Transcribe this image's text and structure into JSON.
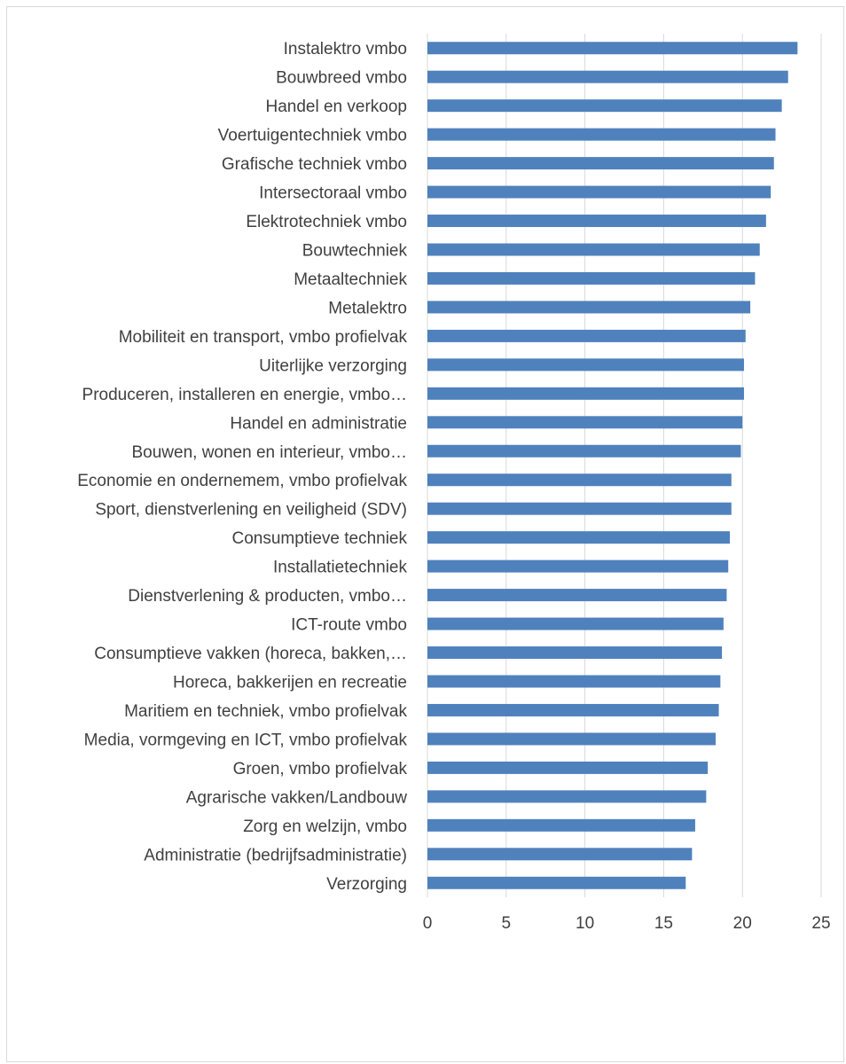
{
  "chart_data": {
    "type": "bar",
    "orientation": "horizontal",
    "title": "",
    "xlabel": "",
    "ylabel": "",
    "xlim": [
      0,
      25
    ],
    "ticks": [
      0,
      5,
      10,
      15,
      20,
      25
    ],
    "tick_labels": [
      "0",
      "5",
      "10",
      "15",
      "20",
      "25"
    ],
    "grid": "vertical gridlines",
    "legend": "none",
    "bar_color": "#4f81bd",
    "categories": [
      "Instalektro vmbo",
      "Bouwbreed vmbo",
      "Handel en verkoop",
      "Voertuigentechniek vmbo",
      "Grafische techniek vmbo",
      "Intersectoraal  vmbo",
      "Elektrotechniek vmbo",
      "Bouwtechniek",
      "Metaaltechniek",
      "Metalektro",
      "Mobiliteit en transport, vmbo profielvak",
      "Uiterlijke verzorging",
      "Produceren, installeren en energie, vmbo…",
      "Handel en administratie",
      "Bouwen, wonen en interieur, vmbo…",
      "Economie en ondernemem, vmbo profielvak",
      "Sport, dienstverlening en veiligheid (SDV)",
      "Consumptieve techniek",
      "Installatietechniek",
      "Dienstverlening & producten, vmbo…",
      "ICT-route vmbo",
      "Consumptieve vakken (horeca, bakken,…",
      "Horeca, bakkerijen en recreatie",
      "Maritiem en techniek, vmbo profielvak",
      "Media, vormgeving en ICT, vmbo profielvak",
      "Groen, vmbo profielvak",
      "Agrarische vakken/Landbouw",
      "Zorg en welzijn, vmbo",
      "Administratie (bedrijfsadministratie)",
      "Verzorging"
    ],
    "values": [
      23.5,
      22.9,
      22.5,
      22.1,
      22.0,
      21.8,
      21.5,
      21.1,
      20.8,
      20.5,
      20.2,
      20.1,
      20.1,
      20.0,
      19.9,
      19.3,
      19.3,
      19.2,
      19.1,
      19.0,
      18.8,
      18.7,
      18.6,
      18.5,
      18.3,
      17.8,
      17.7,
      17.0,
      16.8,
      16.4
    ]
  }
}
